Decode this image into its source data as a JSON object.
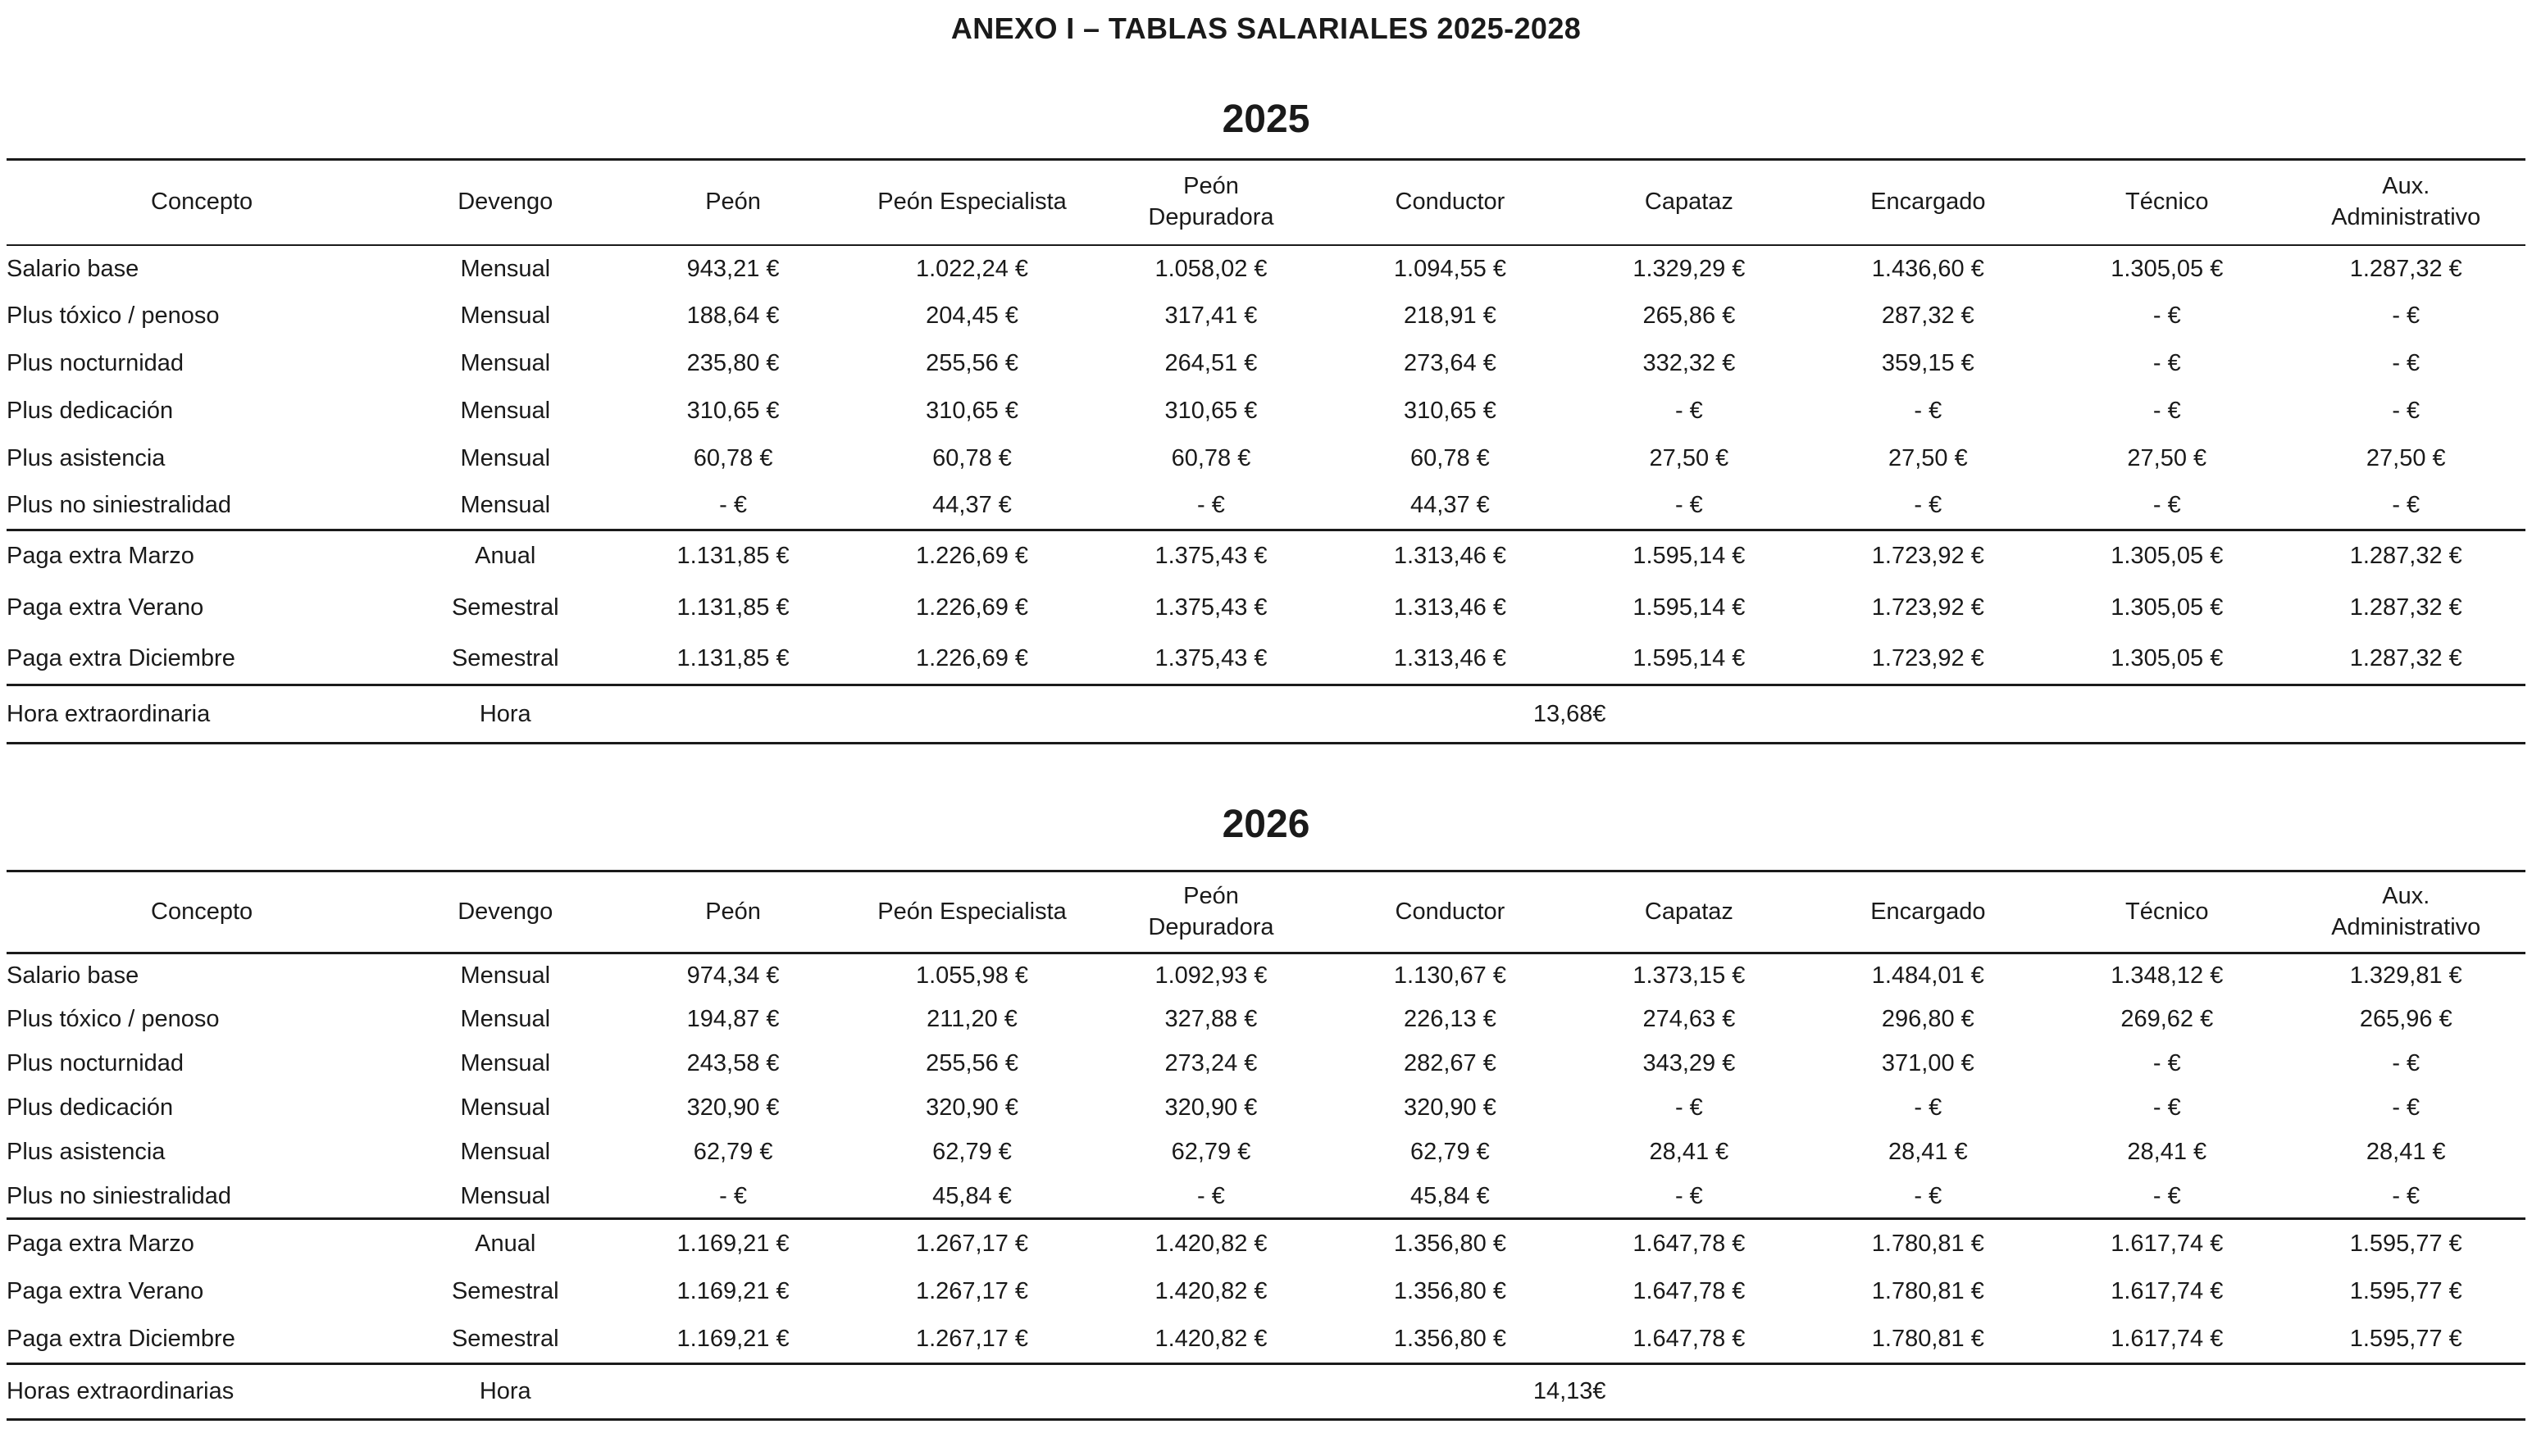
{
  "page": {
    "title": "ANEXO I – TABLAS SALARIALES 2025-2028"
  },
  "columns": [
    "Concepto",
    "Devengo",
    "Peón",
    "Peón Especialista",
    "Peón\nDepuradora",
    "Conductor",
    "Capataz",
    "Encargado",
    "Técnico",
    "Aux.\nAdministrativo"
  ],
  "tables": [
    {
      "year": "2025",
      "monthly_rows": [
        {
          "concept": "Salario base",
          "devengo": "Mensual",
          "values": [
            "943,21 €",
            "1.022,24 €",
            "1.058,02 €",
            "1.094,55 €",
            "1.329,29 €",
            "1.436,60 €",
            "1.305,05 €",
            "1.287,32 €"
          ]
        },
        {
          "concept": "Plus tóxico / penoso",
          "devengo": "Mensual",
          "values": [
            "188,64 €",
            "204,45 €",
            "317,41 €",
            "218,91 €",
            "265,86 €",
            "287,32 €",
            "- €",
            "- €"
          ]
        },
        {
          "concept": "Plus nocturnidad",
          "devengo": "Mensual",
          "values": [
            "235,80 €",
            "255,56 €",
            "264,51 €",
            "273,64 €",
            "332,32 €",
            "359,15 €",
            "- €",
            "- €"
          ]
        },
        {
          "concept": "Plus dedicación",
          "devengo": "Mensual",
          "values": [
            "310,65 €",
            "310,65 €",
            "310,65 €",
            "310,65 €",
            "- €",
            "- €",
            "- €",
            "- €"
          ]
        },
        {
          "concept": "Plus asistencia",
          "devengo": "Mensual",
          "values": [
            "60,78 €",
            "60,78 €",
            "60,78 €",
            "60,78 €",
            "27,50 €",
            "27,50 €",
            "27,50 €",
            "27,50 €"
          ]
        },
        {
          "concept": "Plus no siniestralidad",
          "devengo": "Mensual",
          "values": [
            "- €",
            "44,37 €",
            "- €",
            "44,37 €",
            "- €",
            "- €",
            "- €",
            "- €"
          ]
        }
      ],
      "extra_rows": [
        {
          "concept": "Paga extra Marzo",
          "devengo": "Anual",
          "values": [
            "1.131,85 €",
            "1.226,69 €",
            "1.375,43 €",
            "1.313,46 €",
            "1.595,14 €",
            "1.723,92 €",
            "1.305,05 €",
            "1.287,32 €"
          ]
        },
        {
          "concept": "Paga extra Verano",
          "devengo": "Semestral",
          "values": [
            "1.131,85 €",
            "1.226,69 €",
            "1.375,43 €",
            "1.313,46 €",
            "1.595,14 €",
            "1.723,92 €",
            "1.305,05 €",
            "1.287,32 €"
          ]
        },
        {
          "concept": "Paga extra Diciembre",
          "devengo": "Semestral",
          "values": [
            "1.131,85 €",
            "1.226,69 €",
            "1.375,43 €",
            "1.313,46 €",
            "1.595,14 €",
            "1.723,92 €",
            "1.305,05 €",
            "1.287,32 €"
          ]
        }
      ],
      "overtime_row": {
        "concept": "Hora extraordinaria",
        "devengo": "Hora",
        "value": "13,68€"
      }
    },
    {
      "year": "2026",
      "monthly_rows": [
        {
          "concept": "Salario base",
          "devengo": "Mensual",
          "values": [
            "974,34 €",
            "1.055,98 €",
            "1.092,93 €",
            "1.130,67 €",
            "1.373,15 €",
            "1.484,01 €",
            "1.348,12 €",
            "1.329,81 €"
          ]
        },
        {
          "concept": "Plus tóxico / penoso",
          "devengo": "Mensual",
          "values": [
            "194,87 €",
            "211,20 €",
            "327,88 €",
            "226,13 €",
            "274,63 €",
            "296,80 €",
            "269,62 €",
            "265,96 €"
          ]
        },
        {
          "concept": "Plus nocturnidad",
          "devengo": "Mensual",
          "values": [
            "243,58 €",
            "255,56 €",
            "273,24 €",
            "282,67 €",
            "343,29 €",
            "371,00 €",
            "- €",
            "- €"
          ]
        },
        {
          "concept": "Plus dedicación",
          "devengo": "Mensual",
          "values": [
            "320,90 €",
            "320,90 €",
            "320,90 €",
            "320,90 €",
            "- €",
            "- €",
            "- €",
            "- €"
          ]
        },
        {
          "concept": "Plus asistencia",
          "devengo": "Mensual",
          "values": [
            "62,79 €",
            "62,79 €",
            "62,79 €",
            "62,79 €",
            "28,41 €",
            "28,41 €",
            "28,41 €",
            "28,41 €"
          ]
        },
        {
          "concept": "Plus no siniestralidad",
          "devengo": "Mensual",
          "values": [
            "- €",
            "45,84 €",
            "- €",
            "45,84 €",
            "- €",
            "- €",
            "- €",
            "- €"
          ]
        }
      ],
      "extra_rows": [
        {
          "concept": "Paga extra Marzo",
          "devengo": "Anual",
          "values": [
            "1.169,21 €",
            "1.267,17 €",
            "1.420,82 €",
            "1.356,80 €",
            "1.647,78 €",
            "1.780,81 €",
            "1.617,74 €",
            "1.595,77 €"
          ]
        },
        {
          "concept": "Paga extra Verano",
          "devengo": "Semestral",
          "values": [
            "1.169,21 €",
            "1.267,17 €",
            "1.420,82 €",
            "1.356,80 €",
            "1.647,78 €",
            "1.780,81 €",
            "1.617,74 €",
            "1.595,77 €"
          ]
        },
        {
          "concept": "Paga extra Diciembre",
          "devengo": "Semestral",
          "values": [
            "1.169,21 €",
            "1.267,17 €",
            "1.420,82 €",
            "1.356,80 €",
            "1.647,78 €",
            "1.780,81 €",
            "1.617,74 €",
            "1.595,77 €"
          ]
        }
      ],
      "overtime_row": {
        "concept": "Horas extraordinarias",
        "devengo": "Hora",
        "value": "14,13€"
      }
    }
  ]
}
